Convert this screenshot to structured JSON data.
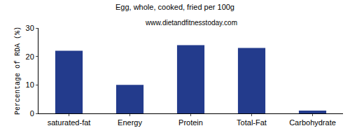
{
  "chart_data": {
    "type": "bar",
    "title": "Egg, whole, cooked, fried per 100g",
    "subtitle": "www.dietandfitnesstoday.com",
    "y_label": "Percentage of RDA (%)",
    "categories": [
      "saturated-fat",
      "Energy",
      "Protein",
      "Total-Fat",
      "Carbohydrate"
    ],
    "values": [
      22,
      10,
      24,
      23,
      1
    ],
    "color": "#233b8c",
    "ylim": [
      0,
      30
    ],
    "yticks": [
      0,
      10,
      20,
      30
    ],
    "grid": false
  }
}
